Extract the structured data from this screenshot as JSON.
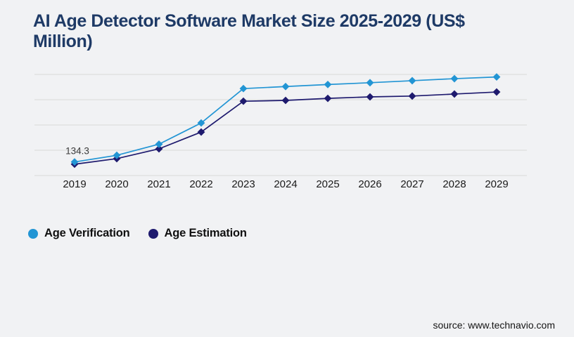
{
  "page": {
    "background": "#f1f2f4",
    "title": "AI Age Detector Software Market Size 2025-2029 (US$ Million)",
    "title_color": "#1e3a66",
    "source": "source: www.technavio.com"
  },
  "legend": [
    {
      "label": "Age Verification",
      "color": "#2295d4"
    },
    {
      "label": "Age Estimation",
      "color": "#1e1a6e"
    }
  ],
  "chart_data": {
    "type": "line",
    "title": "AI Age Detector Software Market Size 2025-2029 (US$ Million)",
    "categories": [
      "2019",
      "2020",
      "2021",
      "2022",
      "2023",
      "2024",
      "2025",
      "2026",
      "2027",
      "2028",
      "2029"
    ],
    "series": [
      {
        "name": "Age Verification",
        "color": "#2295d4",
        "values": [
          134.3,
          200,
          310,
          520,
          860,
          880,
          900,
          918,
          938,
          958,
          975
        ]
      },
      {
        "name": "Age Estimation",
        "color": "#1e1a6e",
        "values": [
          112,
          167,
          264,
          430,
          735,
          743,
          763,
          778,
          786,
          806,
          826
        ]
      }
    ],
    "xlabel": "",
    "ylabel": "",
    "ylim": [
      0,
      1000
    ],
    "grid": true,
    "grid_step": 250,
    "gridline_color": "#d9d9d9",
    "axis_label_color": "#1a1a1a",
    "point_label": {
      "series_index": 0,
      "point_index": 0,
      "text": "134.3",
      "color": "#3a3a3a"
    },
    "legend_position": "bottom-left",
    "marker": "diamond"
  }
}
